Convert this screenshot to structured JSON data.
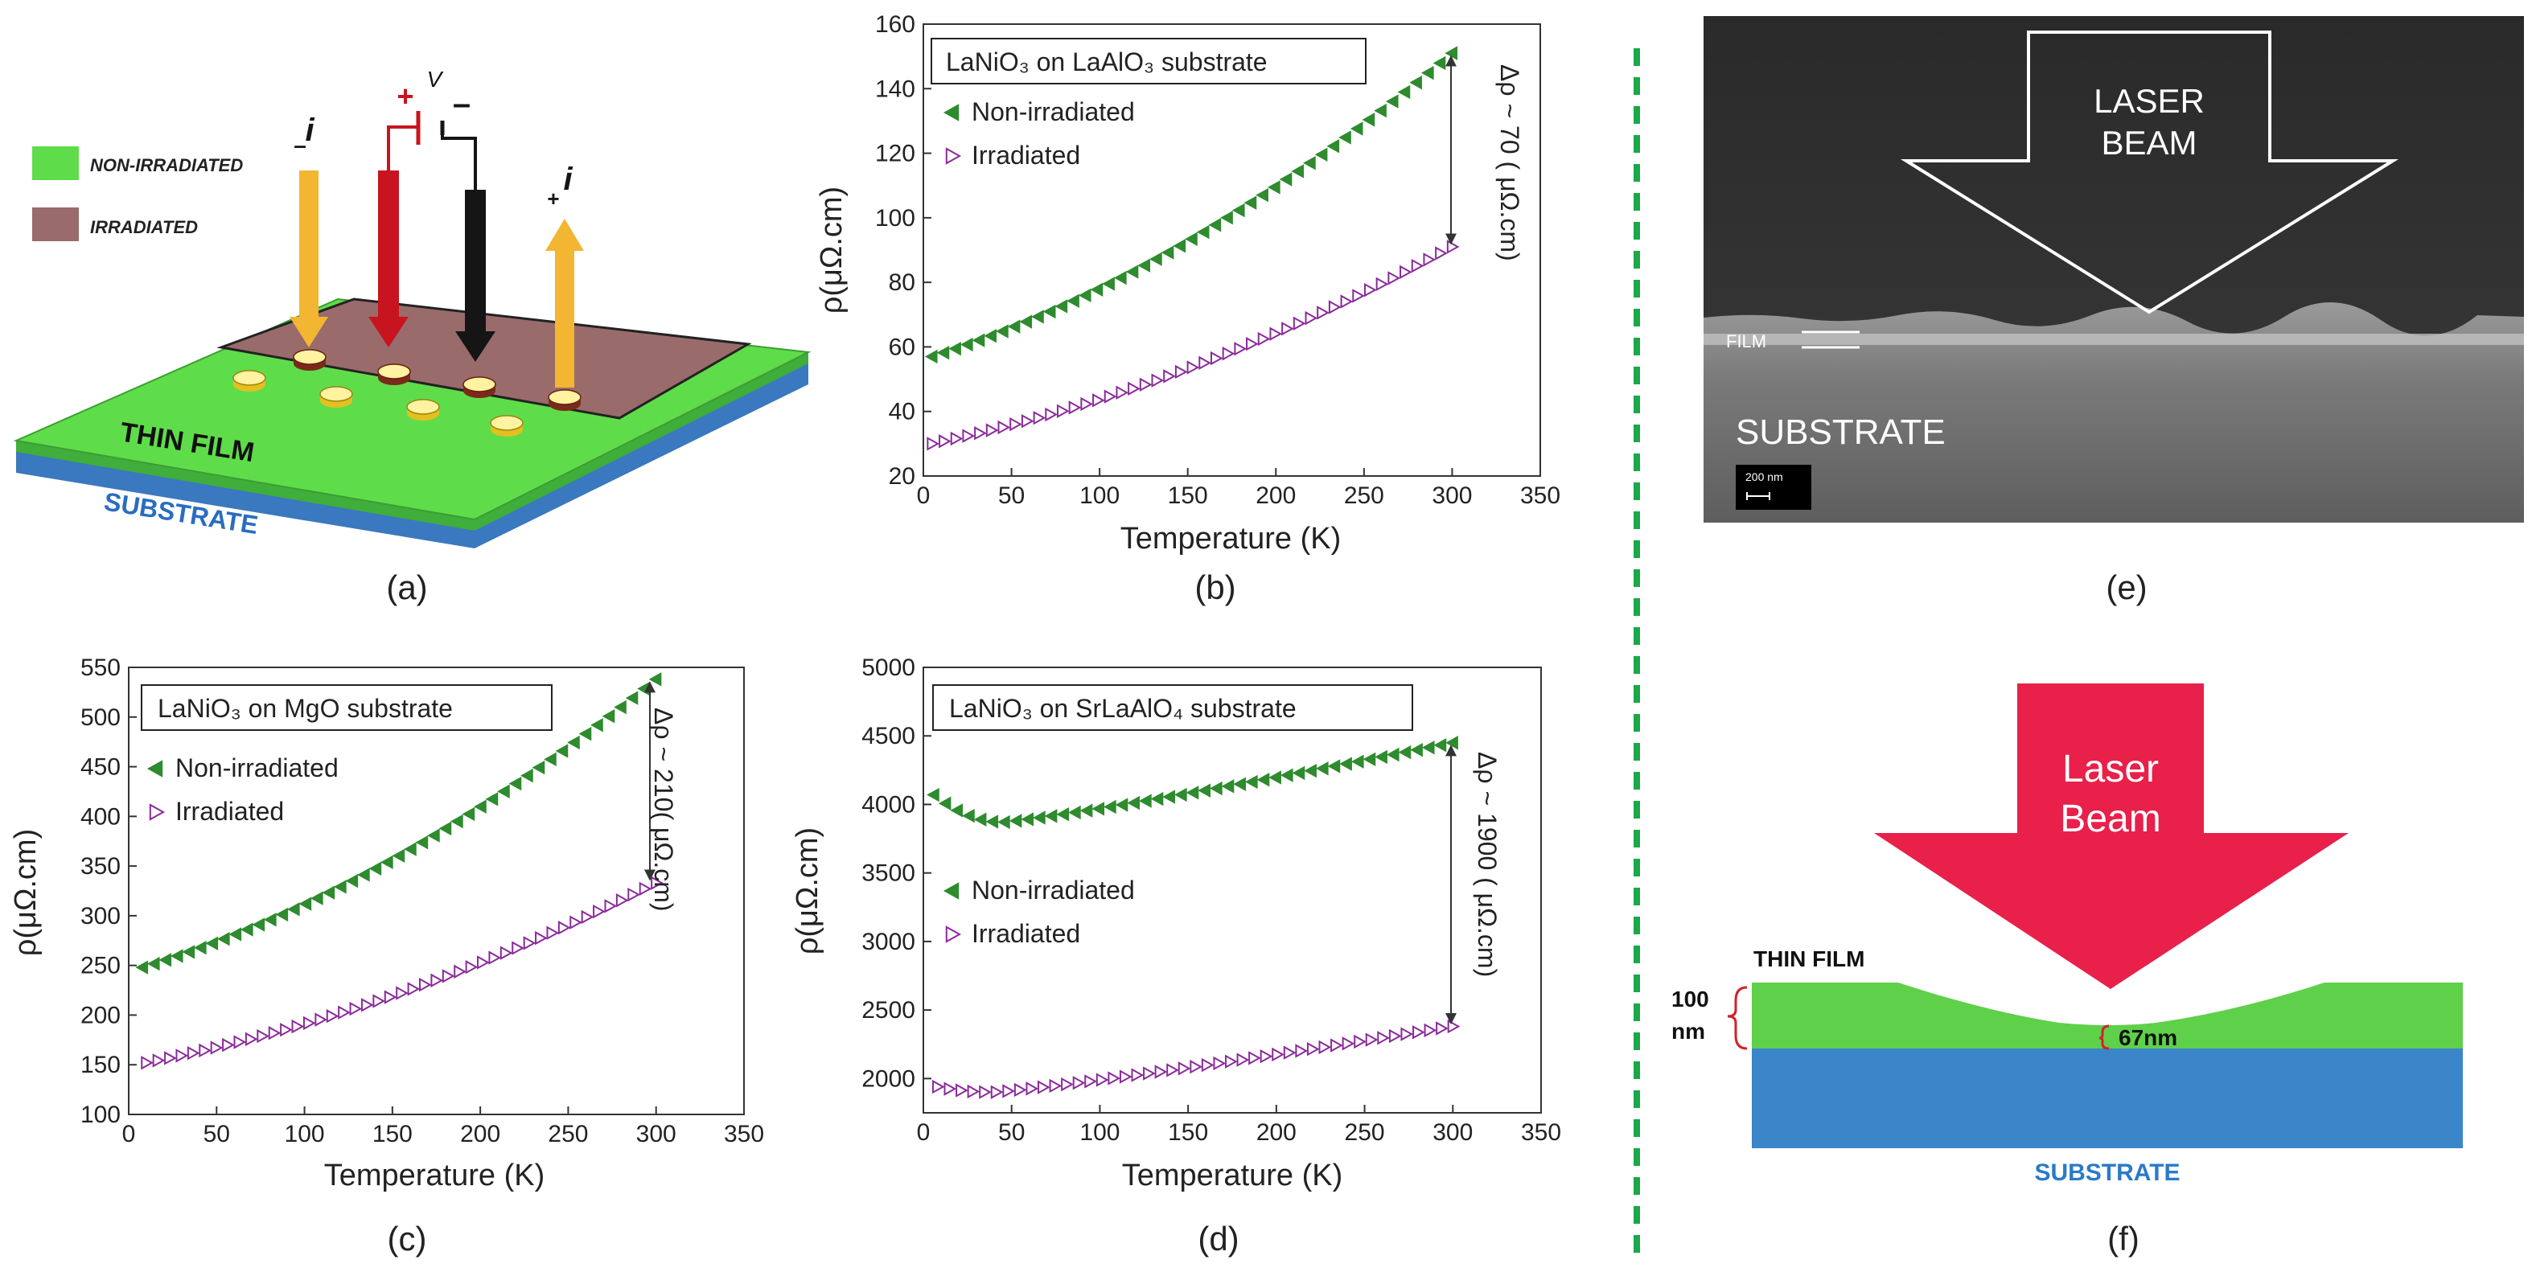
{
  "panel_labels": {
    "a": "(a)",
    "b": "(b)",
    "c": "(c)",
    "d": "(d)",
    "e": "(e)",
    "f": "(f)"
  },
  "schematic_a": {
    "legend_non_irradiated": "NON-IRRADIATED",
    "legend_irradiated": "IRRADIATED",
    "thin_film": "THIN FILM",
    "substrate": "SUBSTRATE",
    "voltage": "V",
    "plus": "+",
    "minus": "–",
    "current_left": "i",
    "current_left_sign": "–",
    "current_right": "i",
    "current_right_sign": "+",
    "colors": {
      "non_irradiated": "#5fdc4a",
      "irradiated": "#9a6b6b",
      "substrate": "#3a78c0",
      "probe_i": "#f2b632",
      "probe_plus": "#c8141e",
      "probe_minus": "#151515"
    }
  },
  "sem_e": {
    "arrow_line1": "LASER",
    "arrow_line2": "BEAM",
    "film": "FILM",
    "substrate": "SUBSTRATE",
    "scale": "200 nm"
  },
  "diagram_f": {
    "laser_line1": "Laser",
    "laser_line2": "Beam",
    "thin_film": "THIN FILM",
    "thickness_value": "100",
    "thickness_unit": "nm",
    "dip": "67nm",
    "substrate": "SUBSTRATE",
    "colors": {
      "laser": "#e8204a",
      "film": "#5fd04a",
      "substrate": "#3a86c8"
    }
  },
  "chart_data": [
    {
      "id": "b",
      "type": "scatter",
      "title": "LaNiO₃  on LaAlO₃ substrate",
      "xlabel": "Temperature (K)",
      "ylabel": "ρ(μΩ.cm)",
      "xlim": [
        0,
        350
      ],
      "ylim": [
        20,
        160
      ],
      "xticks": [
        0,
        50,
        100,
        150,
        200,
        250,
        300,
        350
      ],
      "yticks": [
        20,
        40,
        60,
        80,
        100,
        120,
        140,
        160
      ],
      "annotation": "Δρ ~ 70  ( μΩ.cm)",
      "series": [
        {
          "name": "Non-irradiated",
          "marker": "left",
          "color": "#2e8b2e",
          "x_start": 5,
          "x_end": 300,
          "count": 45,
          "y_start": 57,
          "y_end": 151
        },
        {
          "name": "Irradiated",
          "marker": "right",
          "color": "#8a2a9a",
          "x_start": 5,
          "x_end": 300,
          "count": 45,
          "y_start": 30,
          "y_end": 91
        }
      ]
    },
    {
      "id": "c",
      "type": "scatter",
      "title": "LaNiO₃   on MgO substrate",
      "xlabel": "Temperature (K)",
      "ylabel": "ρ(μΩ.cm)",
      "xlim": [
        0,
        350
      ],
      "ylim": [
        100,
        550
      ],
      "xticks": [
        0,
        50,
        100,
        150,
        200,
        250,
        300,
        350
      ],
      "yticks": [
        100,
        150,
        200,
        250,
        300,
        350,
        400,
        450,
        500,
        550
      ],
      "annotation": "Δρ ~ 210( μΩ.cm)",
      "series": [
        {
          "name": "Non-irradiated",
          "marker": "left",
          "color": "#2e8b2e",
          "x_start": 8,
          "x_end": 300,
          "count": 45,
          "y_start": 248,
          "y_end": 538
        },
        {
          "name": "Irradiated",
          "marker": "right",
          "color": "#8a2a9a",
          "x_start": 10,
          "x_end": 300,
          "count": 45,
          "y_start": 152,
          "y_end": 333
        }
      ]
    },
    {
      "id": "d",
      "type": "scatter",
      "title": "LaNiO₃  on SrLaAlO₄ substrate",
      "xlabel": "Temperature (K)",
      "ylabel": "ρ(μΩ.cm)",
      "xlim": [
        0,
        350
      ],
      "ylim": [
        1750,
        5000
      ],
      "xticks": [
        0,
        50,
        100,
        150,
        200,
        250,
        300,
        350
      ],
      "yticks": [
        2000,
        2500,
        3000,
        3500,
        4000,
        4500,
        5000
      ],
      "annotation": "Δρ ~ 1900 ( μΩ.cm)",
      "series": [
        {
          "name": "Non-irradiated",
          "marker": "left",
          "color": "#2e8b2e",
          "x_start": 6,
          "x_end": 300,
          "count": 45,
          "y_start": 4070,
          "y_min": 3870,
          "x_min": 45,
          "y_end": 4450
        },
        {
          "name": "Irradiated",
          "marker": "right",
          "color": "#8a2a9a",
          "x_start": 8,
          "x_end": 300,
          "count": 45,
          "y_start": 1940,
          "y_min": 1900,
          "x_min": 40,
          "y_end": 2380
        }
      ]
    }
  ]
}
